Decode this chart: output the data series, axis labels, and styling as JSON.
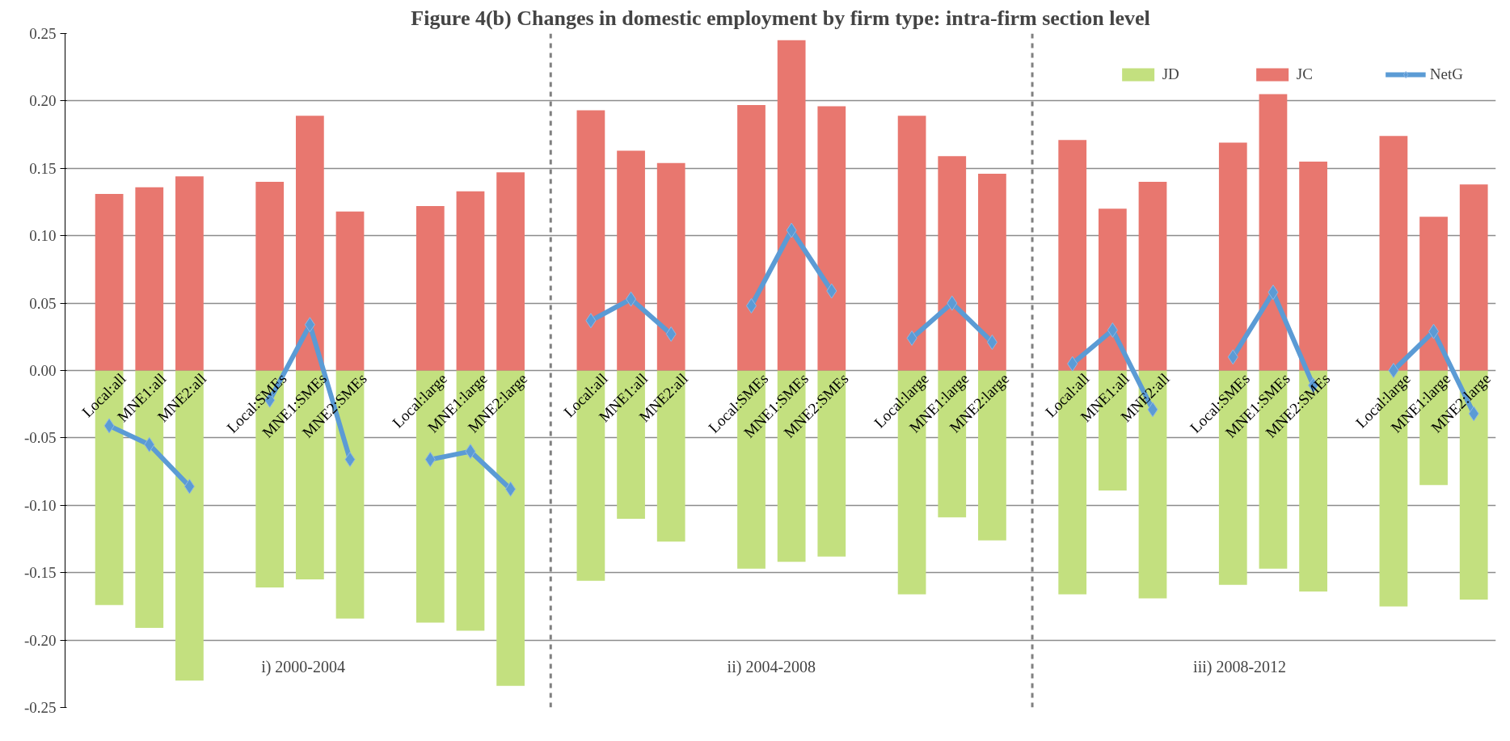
{
  "chart_data": {
    "type": "bar",
    "title": "Figure 4(b) Changes in domestic employment by firm type: intra-firm section level",
    "categories": [
      "Local:all",
      "MNE1:all",
      "MNE2:all",
      null,
      "Local:SMEs",
      "MNE1:SMEs",
      "MNE2:SMEs",
      null,
      "Local:large",
      "MNE1:large",
      "MNE2:large",
      null,
      "Local:all",
      "MNE1:all",
      "MNE2:all",
      null,
      "Local:SMEs",
      "MNE1:SMEs",
      "MNE2:SMEs",
      null,
      "Local:large",
      "MNE1:large",
      "MNE2:large",
      null,
      "Local:all",
      "MNE1:all",
      "MNE2:all",
      null,
      "Local:SMEs",
      "MNE1:SMEs",
      "MNE2:SMEs",
      null,
      "Local:large",
      "MNE1:large",
      "MNE2:large"
    ],
    "series": [
      {
        "name": "JD",
        "color": "#c3e07f",
        "values": [
          -0.174,
          -0.191,
          -0.23,
          null,
          -0.161,
          -0.155,
          -0.184,
          null,
          -0.187,
          -0.193,
          -0.234,
          null,
          -0.156,
          -0.11,
          -0.127,
          null,
          -0.147,
          -0.142,
          -0.138,
          null,
          -0.166,
          -0.109,
          -0.126,
          null,
          -0.166,
          -0.089,
          -0.169,
          null,
          -0.159,
          -0.147,
          -0.164,
          null,
          -0.175,
          -0.085,
          -0.17
        ]
      },
      {
        "name": "JC",
        "color": "#e8776f",
        "values": [
          0.131,
          0.136,
          0.144,
          null,
          0.14,
          0.189,
          0.118,
          null,
          0.122,
          0.133,
          0.147,
          null,
          0.193,
          0.163,
          0.154,
          null,
          0.197,
          0.245,
          0.196,
          null,
          0.189,
          0.159,
          0.146,
          null,
          0.171,
          0.12,
          0.14,
          null,
          0.169,
          0.205,
          0.155,
          null,
          0.174,
          0.114,
          0.138
        ]
      },
      {
        "name": "NetG",
        "type": "line",
        "color": "#5b9bd5",
        "marker": "diamond",
        "values": [
          -0.041,
          -0.055,
          -0.086,
          null,
          -0.022,
          0.034,
          -0.066,
          null,
          -0.066,
          -0.06,
          -0.088,
          null,
          0.037,
          0.053,
          0.027,
          null,
          0.048,
          0.104,
          0.059,
          null,
          0.024,
          0.05,
          0.021,
          null,
          0.005,
          0.03,
          -0.029,
          null,
          0.01,
          0.058,
          -0.011,
          null,
          0.0,
          0.029,
          -0.032
        ]
      }
    ],
    "ylim": [
      -0.25,
      0.25
    ],
    "yticks": [
      -0.25,
      {
        "value": -0.2,
        "label": "-0.20"
      },
      -0.15,
      {
        "value": -0.1,
        "label": "-0.10"
      },
      -0.05,
      {
        "value": 0,
        "label": "0.00"
      },
      0.05,
      {
        "value": 0.1,
        "label": "0.10"
      },
      0.15,
      {
        "value": 0.2,
        "label": "0.20"
      },
      0.25
    ],
    "stacked": true,
    "annotations": [
      "i) 2000-2004",
      "ii) 2004-2008",
      "iii) 2008-2012"
    ],
    "grid": "y",
    "legend": "top right"
  }
}
